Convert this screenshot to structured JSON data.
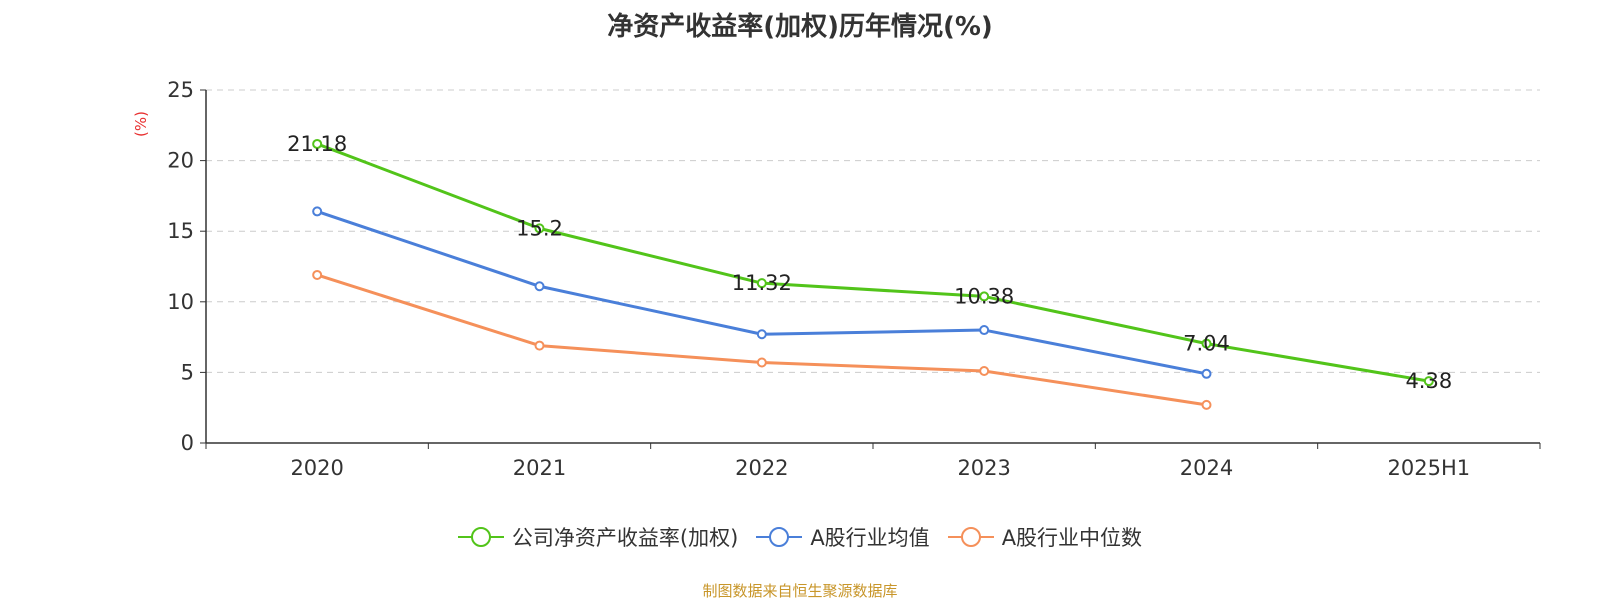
{
  "chart_data": {
    "type": "line",
    "title": "净资产收益率(加权)历年情况(%)",
    "ylabel": "(%)",
    "xlabel": "",
    "ylim": [
      0,
      25
    ],
    "yticks": [
      0,
      5,
      10,
      15,
      20,
      25
    ],
    "grid": true,
    "legend_position": "bottom",
    "categories": [
      "2020",
      "2021",
      "2022",
      "2023",
      "2024",
      "2025H1"
    ],
    "series": [
      {
        "name": "公司净资产收益率(加权)",
        "color": "#52c41a",
        "values": [
          21.18,
          15.2,
          11.32,
          10.38,
          7.04,
          4.38
        ],
        "labels": [
          "21.18",
          "15.2",
          "11.32",
          "10.38",
          "7.04",
          "4.38"
        ]
      },
      {
        "name": "A股行业均值",
        "color": "#4a7fd9",
        "values": [
          16.4,
          11.1,
          7.7,
          8.0,
          4.9,
          null
        ]
      },
      {
        "name": "A股行业中位数",
        "color": "#f5905a",
        "values": [
          11.9,
          6.9,
          5.7,
          5.1,
          2.7,
          null
        ]
      }
    ],
    "source": "制图数据来自恒生聚源数据库"
  }
}
